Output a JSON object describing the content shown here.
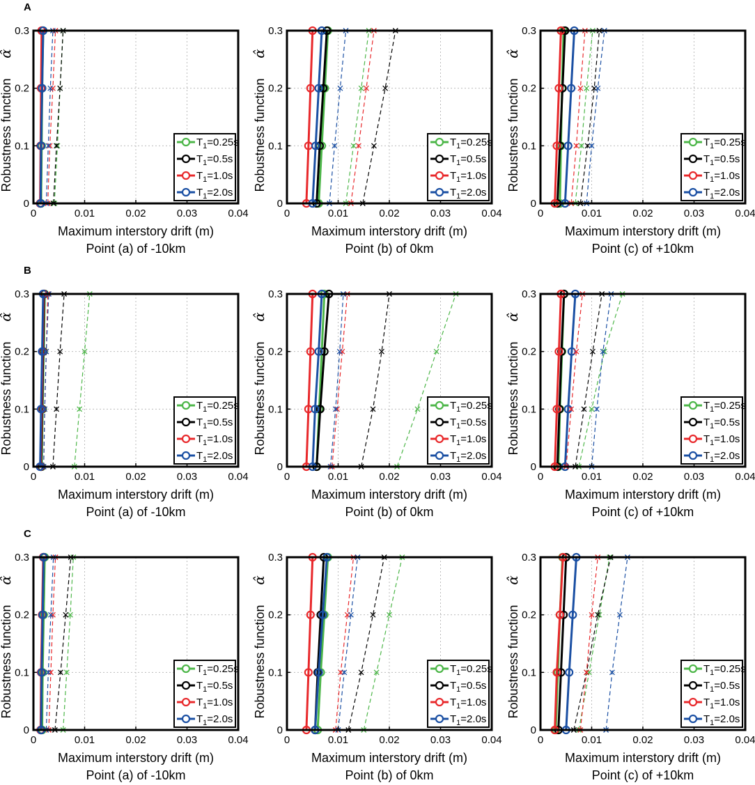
{
  "row_labels": [
    "A",
    "B",
    "C"
  ],
  "x_axis_label": "Maximum interstory drift (m)",
  "y_axis_label": "Robustness function",
  "y_axis_symbol": "α̂",
  "x_ticks": [
    "0",
    "0.01",
    "0.02",
    "0.03",
    "0.04"
  ],
  "y_ticks": [
    "0",
    "0.1",
    "0.2",
    "0.3"
  ],
  "legend_entries": [
    {
      "base": "T",
      "sub": "1",
      "rest": "=0.25s",
      "color": "#4cb648"
    },
    {
      "base": "T",
      "sub": "1",
      "rest": "=0.5s",
      "color": "#000000"
    },
    {
      "base": "T",
      "sub": "1",
      "rest": "=1.0s",
      "color": "#e8282b"
    },
    {
      "base": "T",
      "sub": "1",
      "rest": "=2.0s",
      "color": "#1a4fa3"
    }
  ],
  "colors": {
    "green": "#4cb648",
    "black": "#000000",
    "red": "#e8282b",
    "blue": "#1a4fa3",
    "grid": "#bbbbbb"
  },
  "chart_data": [
    {
      "type": "line",
      "row": "A",
      "subtitle": "Point (a) of -10km",
      "xlabel": "Maximum interstory drift (m)",
      "ylabel": "Robustness function α̂",
      "xlim": [
        0,
        0.04
      ],
      "ylim": [
        0,
        0.3
      ],
      "y": [
        0,
        0.1,
        0.2,
        0.3
      ],
      "series": [
        {
          "name": "T1=0.25s",
          "style": "solid",
          "values": [
            0.0015,
            0.0016,
            0.0017,
            0.0019
          ]
        },
        {
          "name": "T1=0.5s",
          "style": "solid",
          "values": [
            0.0014,
            0.0015,
            0.0016,
            0.0017
          ]
        },
        {
          "name": "T1=1.0s",
          "style": "solid",
          "values": [
            0.0013,
            0.0014,
            0.0015,
            0.0016
          ]
        },
        {
          "name": "T1=2.0s",
          "style": "solid",
          "values": [
            0.0014,
            0.0015,
            0.0017,
            0.0019
          ]
        },
        {
          "name": "T1=0.25s",
          "style": "dashed",
          "values": [
            0.0041,
            0.0047,
            0.0052,
            0.0058
          ]
        },
        {
          "name": "T1=0.5s",
          "style": "dashed",
          "values": [
            0.0039,
            0.0045,
            0.0052,
            0.0058
          ]
        },
        {
          "name": "T1=1.0s",
          "style": "dashed",
          "values": [
            0.0028,
            0.0032,
            0.0038,
            0.0043
          ]
        },
        {
          "name": "T1=2.0s",
          "style": "dashed",
          "values": [
            0.0025,
            0.0029,
            0.0033,
            0.0038
          ]
        }
      ]
    },
    {
      "type": "line",
      "row": "A",
      "subtitle": "Point (b) of 0km",
      "xlabel": "Maximum interstory drift (m)",
      "ylabel": "Robustness function α̂",
      "xlim": [
        0,
        0.04
      ],
      "ylim": [
        0,
        0.3
      ],
      "y": [
        0,
        0.1,
        0.2,
        0.3
      ],
      "series": [
        {
          "name": "T1=0.25s",
          "style": "solid",
          "values": [
            0.0062,
            0.0068,
            0.0074,
            0.008
          ]
        },
        {
          "name": "T1=0.5s",
          "style": "solid",
          "values": [
            0.0058,
            0.0064,
            0.0071,
            0.0078
          ]
        },
        {
          "name": "T1=1.0s",
          "style": "solid",
          "values": [
            0.0038,
            0.0042,
            0.0046,
            0.005
          ]
        },
        {
          "name": "T1=2.0s",
          "style": "solid",
          "values": [
            0.005,
            0.0056,
            0.0062,
            0.0068
          ]
        },
        {
          "name": "T1=0.25s",
          "style": "dashed",
          "values": [
            0.0115,
            0.013,
            0.0145,
            0.016
          ]
        },
        {
          "name": "T1=0.5s",
          "style": "dashed",
          "values": [
            0.0148,
            0.017,
            0.0192,
            0.0212
          ]
        },
        {
          "name": "T1=1.0s",
          "style": "dashed",
          "values": [
            0.0125,
            0.014,
            0.0155,
            0.017
          ]
        },
        {
          "name": "T1=2.0s",
          "style": "dashed",
          "values": [
            0.0083,
            0.0093,
            0.0104,
            0.0115
          ]
        }
      ]
    },
    {
      "type": "line",
      "row": "A",
      "subtitle": "Point (c) of +10km",
      "xlabel": "Maximum interstory drift (m)",
      "ylabel": "Robustness function α̂",
      "xlim": [
        0,
        0.04
      ],
      "ylim": [
        0,
        0.3
      ],
      "y": [
        0,
        0.1,
        0.2,
        0.3
      ],
      "series": [
        {
          "name": "T1=0.25s",
          "style": "solid",
          "values": [
            0.0038,
            0.004,
            0.0042,
            0.0045
          ]
        },
        {
          "name": "T1=0.5s",
          "style": "solid",
          "values": [
            0.0033,
            0.0038,
            0.0043,
            0.0048
          ]
        },
        {
          "name": "T1=1.0s",
          "style": "solid",
          "values": [
            0.0028,
            0.0032,
            0.0036,
            0.004
          ]
        },
        {
          "name": "T1=2.0s",
          "style": "solid",
          "values": [
            0.0048,
            0.0054,
            0.006,
            0.0066
          ]
        },
        {
          "name": "T1=0.25s",
          "style": "dashed",
          "values": [
            0.0068,
            0.008,
            0.009,
            0.0102
          ]
        },
        {
          "name": "T1=0.5s",
          "style": "dashed",
          "values": [
            0.0078,
            0.0092,
            0.0105,
            0.0115
          ]
        },
        {
          "name": "T1=1.0s",
          "style": "dashed",
          "values": [
            0.006,
            0.007,
            0.0078,
            0.0087
          ]
        },
        {
          "name": "T1=2.0s",
          "style": "dashed",
          "values": [
            0.009,
            0.01,
            0.0112,
            0.0125
          ]
        }
      ]
    },
    {
      "type": "line",
      "row": "B",
      "subtitle": "Point (a) of -10km",
      "xlabel": "Maximum interstory drift (m)",
      "ylabel": "Robustness function α̂",
      "xlim": [
        0,
        0.04
      ],
      "ylim": [
        0,
        0.3
      ],
      "y": [
        0,
        0.1,
        0.2,
        0.3
      ],
      "series": [
        {
          "name": "T1=0.25s",
          "style": "solid",
          "values": [
            0.0016,
            0.0018,
            0.002,
            0.0022
          ]
        },
        {
          "name": "T1=0.5s",
          "style": "solid",
          "values": [
            0.0015,
            0.0017,
            0.0019,
            0.0021
          ]
        },
        {
          "name": "T1=1.0s",
          "style": "solid",
          "values": [
            0.0014,
            0.0016,
            0.0018,
            0.002
          ]
        },
        {
          "name": "T1=2.0s",
          "style": "solid",
          "values": [
            0.0013,
            0.0015,
            0.0017,
            0.0019
          ]
        },
        {
          "name": "T1=0.25s",
          "style": "dashed",
          "values": [
            0.008,
            0.009,
            0.01,
            0.011
          ]
        },
        {
          "name": "T1=0.5s",
          "style": "dashed",
          "values": [
            0.0038,
            0.0045,
            0.0052,
            0.006
          ]
        },
        {
          "name": "T1=1.0s",
          "style": "dashed",
          "values": [
            0.002,
            0.0022,
            0.0025,
            0.0028
          ]
        },
        {
          "name": "T1=2.0s",
          "style": "dashed",
          "values": [
            0.002,
            0.0022,
            0.0025,
            0.003
          ]
        }
      ]
    },
    {
      "type": "line",
      "row": "B",
      "subtitle": "Point (b) of 0km",
      "xlabel": "Maximum interstory drift (m)",
      "ylabel": "Robustness function α̂",
      "xlim": [
        0,
        0.04
      ],
      "ylim": [
        0,
        0.3
      ],
      "y": [
        0,
        0.1,
        0.2,
        0.3
      ],
      "series": [
        {
          "name": "T1=0.25s",
          "style": "solid",
          "values": [
            0.0058,
            0.0063,
            0.0068,
            0.0073
          ]
        },
        {
          "name": "T1=0.5s",
          "style": "solid",
          "values": [
            0.0058,
            0.0065,
            0.0073,
            0.0082
          ]
        },
        {
          "name": "T1=1.0s",
          "style": "solid",
          "values": [
            0.0038,
            0.0042,
            0.0046,
            0.005
          ]
        },
        {
          "name": "T1=2.0s",
          "style": "solid",
          "values": [
            0.005,
            0.0055,
            0.0062,
            0.0068
          ]
        },
        {
          "name": "T1=0.25s",
          "style": "dashed",
          "values": [
            0.0215,
            0.0255,
            0.0292,
            0.033
          ]
        },
        {
          "name": "T1=0.5s",
          "style": "dashed",
          "values": [
            0.0145,
            0.0168,
            0.0185,
            0.02
          ]
        },
        {
          "name": "T1=1.0s",
          "style": "dashed",
          "values": [
            0.0088,
            0.0098,
            0.0108,
            0.0118
          ]
        },
        {
          "name": "T1=2.0s",
          "style": "dashed",
          "values": [
            0.0085,
            0.0095,
            0.0103,
            0.011
          ]
        }
      ]
    },
    {
      "type": "line",
      "row": "B",
      "subtitle": "Point (c) of +10km",
      "xlabel": "Maximum interstory drift (m)",
      "ylabel": "Robustness function α̂",
      "xlim": [
        0,
        0.04
      ],
      "ylim": [
        0,
        0.3
      ],
      "y": [
        0,
        0.1,
        0.2,
        0.3
      ],
      "series": [
        {
          "name": "T1=0.25s",
          "style": "solid",
          "values": [
            0.0035,
            0.0038,
            0.0042,
            0.0046
          ]
        },
        {
          "name": "T1=0.5s",
          "style": "solid",
          "values": [
            0.0033,
            0.0037,
            0.0041,
            0.0046
          ]
        },
        {
          "name": "T1=1.0s",
          "style": "solid",
          "values": [
            0.0028,
            0.0032,
            0.0036,
            0.004
          ]
        },
        {
          "name": "T1=2.0s",
          "style": "solid",
          "values": [
            0.0048,
            0.0054,
            0.0061,
            0.0068
          ]
        },
        {
          "name": "T1=0.25s",
          "style": "dashed",
          "values": [
            0.0075,
            0.01,
            0.0125,
            0.016
          ]
        },
        {
          "name": "T1=0.5s",
          "style": "dashed",
          "values": [
            0.0068,
            0.0085,
            0.0102,
            0.012
          ]
        },
        {
          "name": "T1=1.0s",
          "style": "dashed",
          "values": [
            0.005,
            0.006,
            0.007,
            0.0082
          ]
        },
        {
          "name": "T1=2.0s",
          "style": "dashed",
          "values": [
            0.01,
            0.011,
            0.0122,
            0.0138
          ]
        }
      ]
    },
    {
      "type": "line",
      "row": "C",
      "subtitle": "Point (a) of -10km",
      "xlabel": "Maximum interstory drift (m)",
      "ylabel": "Robustness function α̂",
      "xlim": [
        0,
        0.04
      ],
      "ylim": [
        0,
        0.3
      ],
      "y": [
        0,
        0.1,
        0.2,
        0.3
      ],
      "series": [
        {
          "name": "T1=0.25s",
          "style": "solid",
          "values": [
            0.0017,
            0.0018,
            0.002,
            0.0022
          ]
        },
        {
          "name": "T1=0.5s",
          "style": "solid",
          "values": [
            0.0015,
            0.0016,
            0.0018,
            0.002
          ]
        },
        {
          "name": "T1=1.0s",
          "style": "solid",
          "values": [
            0.0014,
            0.0015,
            0.0017,
            0.0019
          ]
        },
        {
          "name": "T1=2.0s",
          "style": "solid",
          "values": [
            0.0015,
            0.0016,
            0.0018,
            0.002
          ]
        },
        {
          "name": "T1=0.25s",
          "style": "dashed",
          "values": [
            0.0058,
            0.0065,
            0.0072,
            0.0078
          ]
        },
        {
          "name": "T1=0.5s",
          "style": "dashed",
          "values": [
            0.0042,
            0.0053,
            0.0063,
            0.0073
          ]
        },
        {
          "name": "T1=1.0s",
          "style": "dashed",
          "values": [
            0.003,
            0.0034,
            0.0038,
            0.0043
          ]
        },
        {
          "name": "T1=2.0s",
          "style": "dashed",
          "values": [
            0.0025,
            0.0029,
            0.0034,
            0.0039
          ]
        }
      ]
    },
    {
      "type": "line",
      "row": "C",
      "subtitle": "Point (b) of 0km",
      "xlabel": "Maximum interstory drift (m)",
      "ylabel": "Robustness function α̂",
      "xlim": [
        0,
        0.04
      ],
      "ylim": [
        0,
        0.3
      ],
      "y": [
        0,
        0.1,
        0.2,
        0.3
      ],
      "series": [
        {
          "name": "T1=0.25s",
          "style": "solid",
          "values": [
            0.006,
            0.0066,
            0.0073,
            0.008
          ]
        },
        {
          "name": "T1=0.5s",
          "style": "solid",
          "values": [
            0.0055,
            0.006,
            0.0066,
            0.0072
          ]
        },
        {
          "name": "T1=1.0s",
          "style": "solid",
          "values": [
            0.0038,
            0.0042,
            0.0046,
            0.005
          ]
        },
        {
          "name": "T1=2.0s",
          "style": "solid",
          "values": [
            0.0055,
            0.0062,
            0.007,
            0.0078
          ]
        },
        {
          "name": "T1=0.25s",
          "style": "dashed",
          "values": [
            0.015,
            0.0175,
            0.02,
            0.0225
          ]
        },
        {
          "name": "T1=0.5s",
          "style": "dashed",
          "values": [
            0.012,
            0.0145,
            0.0168,
            0.019
          ]
        },
        {
          "name": "T1=1.0s",
          "style": "dashed",
          "values": [
            0.0095,
            0.0105,
            0.0118,
            0.013
          ]
        },
        {
          "name": "T1=2.0s",
          "style": "dashed",
          "values": [
            0.01,
            0.0112,
            0.0125,
            0.0138
          ]
        }
      ]
    },
    {
      "type": "line",
      "row": "C",
      "subtitle": "Point (c) of +10km",
      "xlabel": "Maximum interstory drift (m)",
      "ylabel": "Robustness function α̂",
      "xlim": [
        0,
        0.04
      ],
      "ylim": [
        0,
        0.3
      ],
      "y": [
        0,
        0.1,
        0.2,
        0.3
      ],
      "series": [
        {
          "name": "T1=0.25s",
          "style": "solid",
          "values": [
            0.003,
            0.0034,
            0.0038,
            0.0043
          ]
        },
        {
          "name": "T1=0.5s",
          "style": "solid",
          "values": [
            0.0035,
            0.004,
            0.0045,
            0.005
          ]
        },
        {
          "name": "T1=1.0s",
          "style": "solid",
          "values": [
            0.0028,
            0.0032,
            0.0038,
            0.0044
          ]
        },
        {
          "name": "T1=2.0s",
          "style": "solid",
          "values": [
            0.005,
            0.0056,
            0.0063,
            0.007
          ]
        },
        {
          "name": "T1=0.25s",
          "style": "dashed",
          "values": [
            0.0075,
            0.0095,
            0.0115,
            0.0135
          ]
        },
        {
          "name": "T1=0.5s",
          "style": "dashed",
          "values": [
            0.0065,
            0.009,
            0.0112,
            0.0137
          ]
        },
        {
          "name": "T1=1.0s",
          "style": "dashed",
          "values": [
            0.0078,
            0.009,
            0.01,
            0.0112
          ]
        },
        {
          "name": "T1=2.0s",
          "style": "dashed",
          "values": [
            0.0128,
            0.014,
            0.0155,
            0.017
          ]
        }
      ]
    }
  ]
}
